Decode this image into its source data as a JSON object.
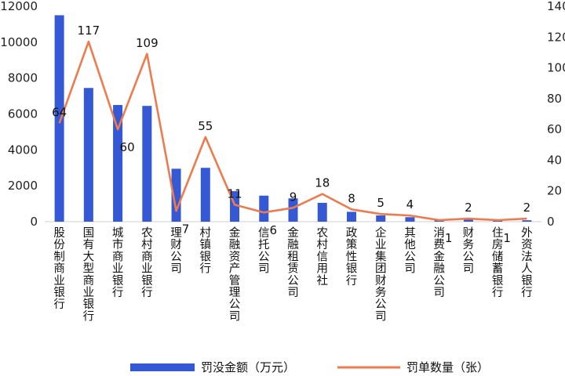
{
  "chart_data": {
    "type": "bar+line",
    "categories": [
      "股份制商业银行",
      "国有大型商业银行",
      "城市商业银行",
      "农村商业银行",
      "理财公司",
      "村镇银行",
      "金融资产管理公司",
      "信托公司",
      "金融租赁公司",
      "农村信用社",
      "政策性银行",
      "企业集团财务公司",
      "其他公司",
      "消费金融公司",
      "财务公司",
      "住房储蓄银行",
      "外资法人银行"
    ],
    "series": [
      {
        "name": "罚没金额（万元）",
        "type": "bar",
        "axis": "left",
        "color": "#3558d4",
        "values": [
          11500,
          7450,
          6500,
          6450,
          2950,
          3000,
          1700,
          1450,
          1300,
          1050,
          550,
          350,
          250,
          100,
          150,
          80,
          80
        ]
      },
      {
        "name": "罚单数量（张）",
        "type": "line",
        "axis": "right",
        "color": "#ee7b4d",
        "values": [
          64,
          117,
          60,
          109,
          7,
          55,
          11,
          6,
          9,
          18,
          8,
          5,
          4,
          1,
          2,
          1,
          2
        ],
        "labels": [
          "64",
          "117",
          "60",
          "109",
          "7",
          "55",
          "11",
          "6",
          "9",
          "18",
          "8",
          "5",
          "4",
          "1",
          "2",
          "1",
          "2"
        ]
      }
    ],
    "y_left": {
      "min": 0,
      "max": 12000,
      "ticks": [
        "0",
        "2000",
        "4000",
        "6000",
        "8000",
        "10000",
        "12000"
      ]
    },
    "y_right": {
      "min": 0,
      "max": 140,
      "ticks": [
        "0",
        "20",
        "40",
        "60",
        "80",
        "100",
        "120",
        "140"
      ]
    },
    "legend": {
      "position": "bottom"
    },
    "grid": false
  }
}
